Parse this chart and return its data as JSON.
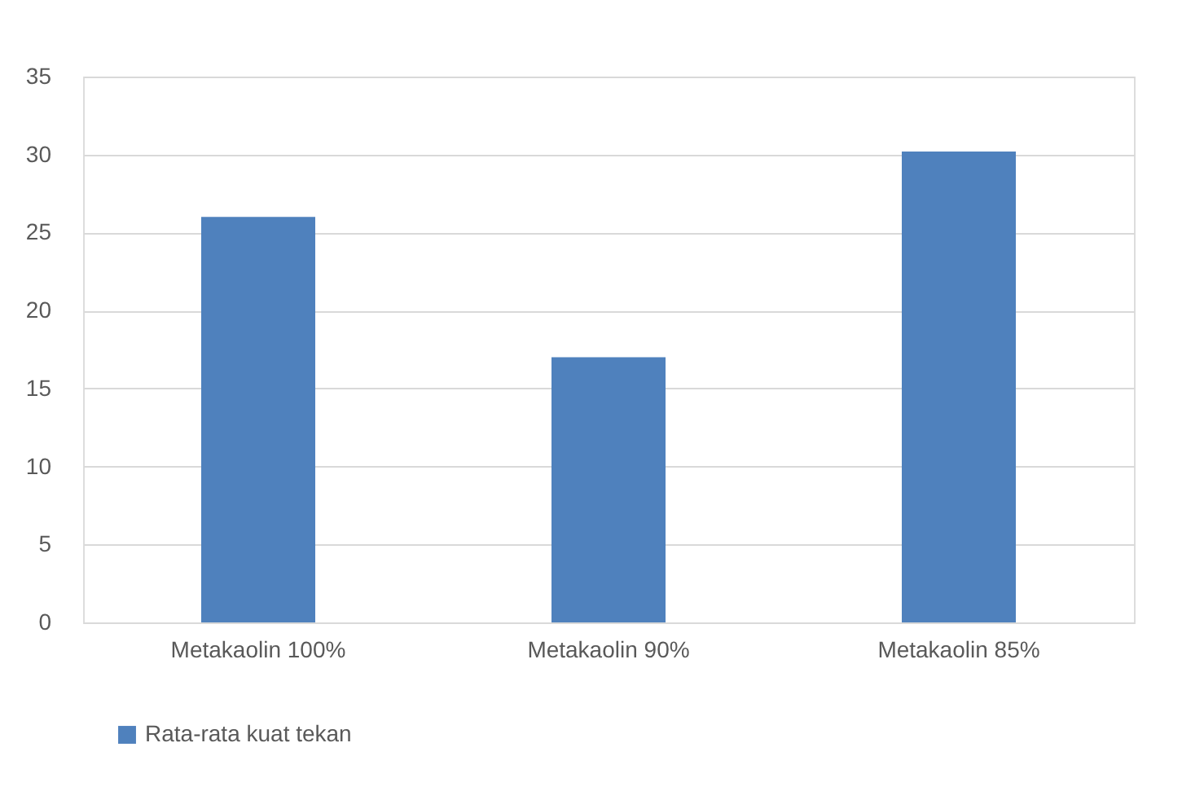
{
  "chart_data": {
    "type": "bar",
    "categories": [
      "Metakaolin 100%",
      "Metakaolin 90%",
      "Metakaolin 85%"
    ],
    "series": [
      {
        "name": "Rata-rata kuat tekan",
        "color": "#4f81bd",
        "values": [
          26,
          17,
          30.2
        ]
      }
    ],
    "ylim": [
      0,
      35
    ],
    "yticks": [
      0,
      5,
      10,
      15,
      20,
      25,
      30,
      35
    ],
    "grid": "y",
    "legend": "bottom"
  }
}
